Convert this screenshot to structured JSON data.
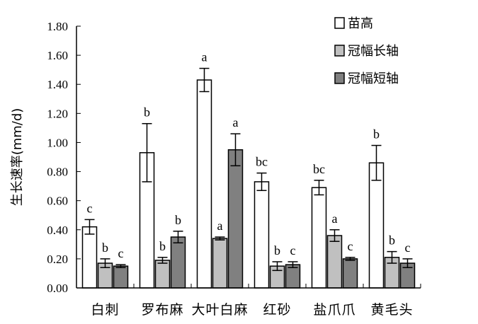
{
  "chart_data": {
    "type": "bar",
    "ylabel": "生长速率(mm/d)",
    "ylim": [
      0,
      1.8
    ],
    "yticks": [
      "0.00",
      "0.20",
      "0.40",
      "0.60",
      "0.80",
      "1.00",
      "1.20",
      "1.40",
      "1.60",
      "1.80"
    ],
    "categories": [
      "白刺",
      "罗布麻",
      "大叶白麻",
      "红砂",
      "盐爪爪",
      "黄毛头"
    ],
    "legend_position": "top-right",
    "series": [
      {
        "name": "苗高",
        "color": "#ffffff",
        "values": [
          0.42,
          0.93,
          1.43,
          0.73,
          0.69,
          0.86
        ],
        "errors": [
          0.05,
          0.2,
          0.08,
          0.06,
          0.05,
          0.12
        ],
        "labels": [
          "c",
          "b",
          "a",
          "bc",
          "bc",
          "b"
        ]
      },
      {
        "name": "冠幅长轴",
        "color": "#c0c0c0",
        "values": [
          0.17,
          0.19,
          0.34,
          0.15,
          0.36,
          0.21
        ],
        "errors": [
          0.03,
          0.02,
          0.01,
          0.03,
          0.04,
          0.04
        ],
        "labels": [
          "b",
          "b",
          "a",
          "b",
          "a",
          "b"
        ]
      },
      {
        "name": "冠幅短轴",
        "color": "#808080",
        "values": [
          0.15,
          0.35,
          0.95,
          0.16,
          0.2,
          0.17
        ],
        "errors": [
          0.01,
          0.04,
          0.11,
          0.02,
          0.01,
          0.03
        ],
        "labels": [
          "c",
          "b",
          "a",
          "c",
          "c",
          "c"
        ]
      }
    ]
  }
}
